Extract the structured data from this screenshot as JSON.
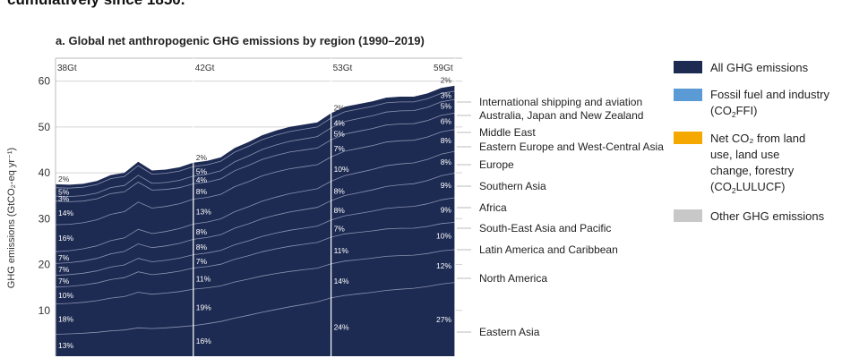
{
  "caption": "cumulatively since 1850.",
  "chart_data": {
    "type": "area",
    "title": "a. Global net anthropogenic GHG emissions by region (1990–2019)",
    "ylabel": "GHG emissions (GtCO₂-eq yr⁻¹)",
    "ylim": [
      0,
      65
    ],
    "yticks": [
      10,
      20,
      30,
      40,
      50,
      60
    ],
    "x": [
      1990,
      1991,
      1992,
      1993,
      1994,
      1995,
      1996,
      1997,
      1998,
      1999,
      2000,
      2001,
      2002,
      2003,
      2004,
      2005,
      2006,
      2007,
      2008,
      2009,
      2010,
      2011,
      2012,
      2013,
      2014,
      2015,
      2016,
      2017,
      2018,
      2019
    ],
    "year_markers": [
      {
        "year": 1990,
        "label": "38Gt"
      },
      {
        "year": 2000,
        "label": "42Gt"
      },
      {
        "year": 2010,
        "label": "53Gt"
      },
      {
        "year": 2019,
        "label": "59Gt"
      }
    ],
    "total": [
      37.5,
      37.4,
      37.6,
      38.2,
      39.5,
      40.0,
      42.4,
      40.5,
      40.7,
      41.2,
      42.2,
      42.6,
      43.4,
      45.4,
      46.7,
      48.2,
      49.2,
      50.0,
      50.5,
      51.0,
      53.0,
      54.4,
      55.0,
      55.6,
      56.4,
      56.6,
      56.6,
      57.3,
      58.5,
      59.0
    ],
    "series": [
      {
        "name": "Eastern Asia",
        "shares": [
          13,
          16,
          24,
          27
        ]
      },
      {
        "name": "North America",
        "shares": [
          18,
          19,
          14,
          12
        ]
      },
      {
        "name": "Latin America and Caribbean",
        "shares": [
          10,
          11,
          11,
          10
        ]
      },
      {
        "name": "South-East Asia and Pacific",
        "shares": [
          7,
          7,
          7,
          9
        ]
      },
      {
        "name": "Africa",
        "shares": [
          7,
          8,
          8,
          9
        ]
      },
      {
        "name": "Southern Asia",
        "shares": [
          7,
          8,
          8,
          8
        ]
      },
      {
        "name": "Europe",
        "shares": [
          16,
          13,
          10,
          8
        ]
      },
      {
        "name": "Eastern Europe and West-Central Asia",
        "shares": [
          14,
          8,
          7,
          6
        ]
      },
      {
        "name": "Middle East",
        "shares": [
          3,
          4,
          5,
          5
        ]
      },
      {
        "name": "Australia, Japan and New Zealand",
        "shares": [
          5,
          5,
          4,
          3
        ]
      },
      {
        "name": "International shipping and aviation",
        "shares": [
          2,
          2,
          2,
          2
        ]
      }
    ]
  },
  "legend": [
    {
      "label_main": "All GHG emissions",
      "color": "#1d2a52"
    },
    {
      "label_main": "Fossil fuel and industry",
      "label_pre": "(CO",
      "label_sub": "2",
      "label_post": "FFI)",
      "color": "#5b9bd5"
    },
    {
      "label_main": "Net CO₂ from land use, land use change, forestry",
      "label_pre": "(CO",
      "label_sub": "2",
      "label_post": "LULUCF)",
      "color": "#f5a800"
    },
    {
      "label_main": "Other GHG emissions",
      "color": "#c8c8c8"
    }
  ]
}
